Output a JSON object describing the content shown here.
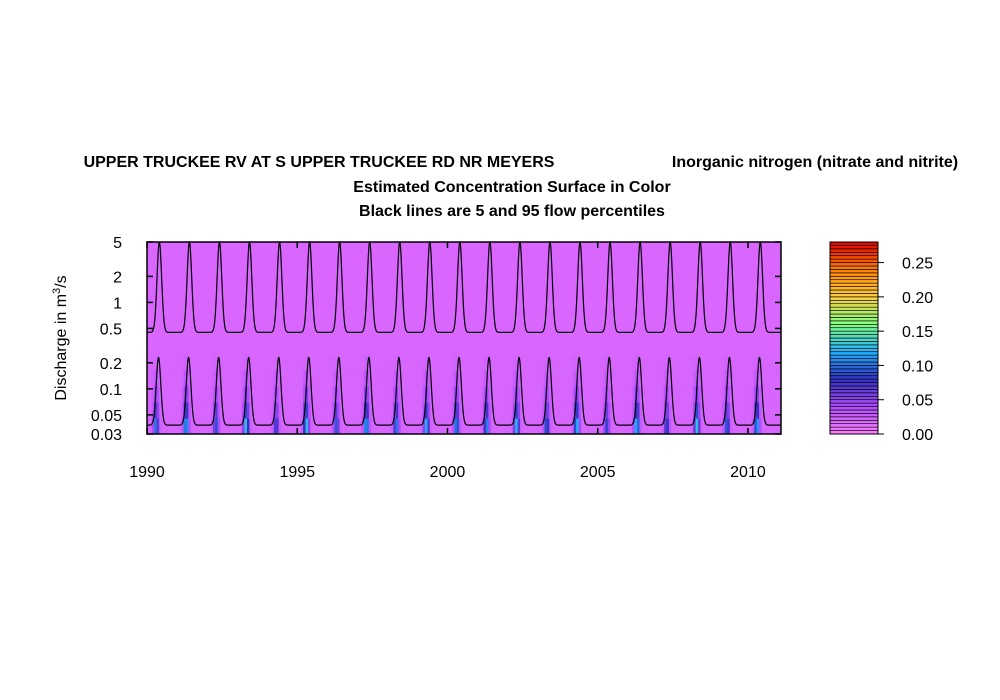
{
  "chart_data": {
    "type": "heatmap",
    "title": {
      "station": "UPPER TRUCKEE RV AT S UPPER TRUCKEE RD NR MEYERS",
      "parameter": "Inorganic nitrogen (nitrate and nitrite)",
      "line2": "Estimated Concentration Surface in Color",
      "line3": "Black lines are 5 and 95 flow percentiles"
    },
    "ylabel_prefix": "Discharge in m",
    "ylabel_sup": "3",
    "ylabel_suffix": "/s",
    "xlim": [
      1990,
      2011.1
    ],
    "ylim": [
      0.03,
      5
    ],
    "ylog": true,
    "x_ticks": [
      1990,
      1995,
      2000,
      2005,
      2010
    ],
    "y_ticks": [
      {
        "value": 0.03,
        "label": "0.03"
      },
      {
        "value": 0.05,
        "label": "0.05"
      },
      {
        "value": 0.1,
        "label": "0.1"
      },
      {
        "value": 0.2,
        "label": "0.2"
      },
      {
        "value": 0.5,
        "label": "0.5"
      },
      {
        "value": 1,
        "label": "1"
      },
      {
        "value": 2,
        "label": "2"
      },
      {
        "value": 5,
        "label": "5"
      }
    ],
    "colorbar": {
      "range": [
        0,
        0.28
      ],
      "ticks": [
        {
          "value": 0.0,
          "label": "0.00"
        },
        {
          "value": 0.05,
          "label": "0.05"
        },
        {
          "value": 0.1,
          "label": "0.10"
        },
        {
          "value": 0.15,
          "label": "0.15"
        },
        {
          "value": 0.2,
          "label": "0.20"
        },
        {
          "value": 0.25,
          "label": "0.25"
        }
      ],
      "colors": [
        "#ff80ff",
        "#b04cff",
        "#3030c0",
        "#20b0ff",
        "#80ff80",
        "#ffd040",
        "#ff8000",
        "#e00000"
      ]
    },
    "surface": {
      "background_concentration": 0.02,
      "low_flow_peak_concentration": 0.13
    },
    "p95_line": {
      "base_discharge": 0.45,
      "peak_discharge": 5,
      "peak_day_of_year": 150
    },
    "p5_line": {
      "base_discharge": 0.038,
      "peak_discharge": 0.23,
      "peak_day_of_year": 140
    }
  }
}
